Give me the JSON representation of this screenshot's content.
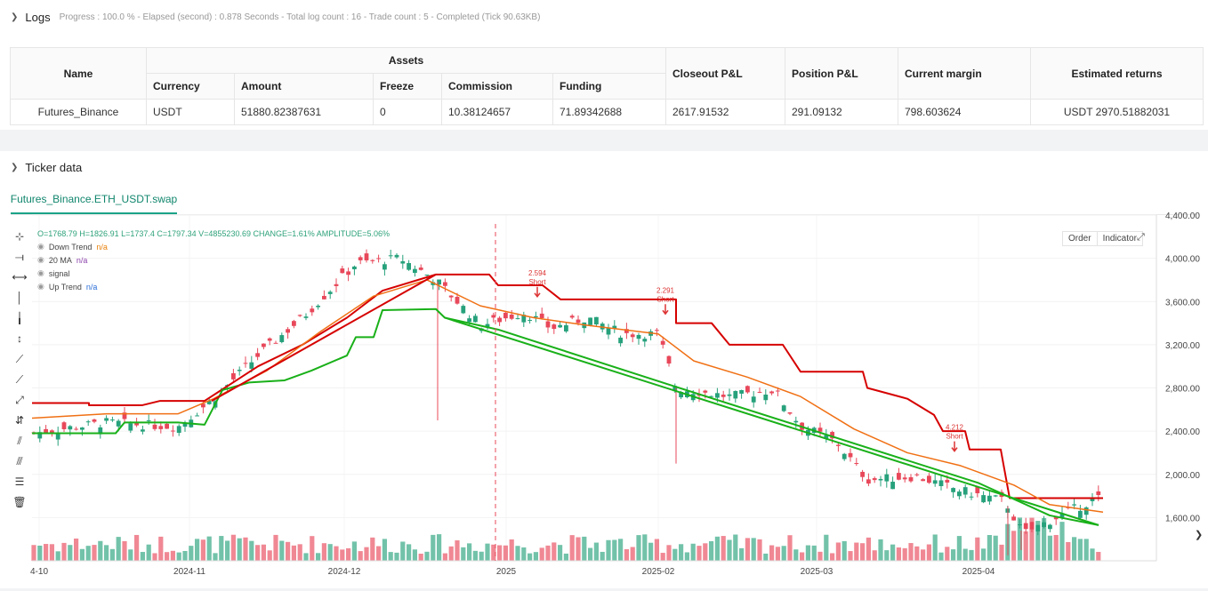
{
  "logs": {
    "title": "Logs",
    "status": "Progress : 100.0 % - Elapsed (second) : 0.878  Seconds - Total log count : 16 - Trade count : 5 - Completed (Tick 90.63KB)",
    "table": {
      "headers": {
        "name": "Name",
        "assets": "Assets",
        "closeout": "Closeout P&L",
        "position": "Position P&L",
        "margin": "Current margin",
        "returns": "Estimated returns"
      },
      "subheaders": [
        "Currency",
        "Amount",
        "Freeze",
        "Commission",
        "Funding"
      ],
      "row": {
        "name": "Futures_Binance",
        "currency": "USDT",
        "amount": "51880.82387631",
        "freeze": "0",
        "commission": "10.38124657",
        "funding": "71.89342688",
        "closeout": "2617.91532",
        "position": "291.09132",
        "margin": "798.603624",
        "returns": "USDT 2970.51882031"
      }
    }
  },
  "ticker": {
    "title": "Ticker data",
    "tab": "Futures_Binance.ETH_USDT.swap",
    "ohlc": "O=1768.79  H=1826.91  L=1737.4  C=1797.34  V=4855230.69  CHANGE=1.61%  AMPLITUDE=5.06%",
    "legend": [
      {
        "name": "Down Trend",
        "value": "n/a",
        "color": "#e8800a"
      },
      {
        "name": "20 MA",
        "value": "n/a",
        "color": "#8e44ad"
      },
      {
        "name": "signal",
        "value": "",
        "color": "#444444"
      },
      {
        "name": "Up Trend",
        "value": "n/a",
        "color": "#2b6ed6"
      }
    ],
    "buttons": {
      "order": "Order",
      "indicator": "Indicator"
    },
    "tools": [
      "crosshair-icon",
      "horizontal-line-icon",
      "horizontal-ray-icon",
      "vertical-line-icon",
      "vertical-segment-icon",
      "vertical-ray-icon",
      "trend-line-icon",
      "trend-ray-icon",
      "trend-segment-icon",
      "price-range-icon",
      "parallel-channel-icon",
      "multi-channel-icon",
      "fibonacci-icon",
      "trash-icon"
    ]
  },
  "chart_data": {
    "type": "candlestick",
    "x_ticks": [
      "4-10",
      "2024-11",
      "2024-12",
      "2025",
      "2025-02",
      "2025-03",
      "2025-04"
    ],
    "y_ticks": [
      "4,400.00",
      "4,000.00",
      "3,600.00",
      "3,200.00",
      "2,800.00",
      "2,400.00",
      "2,000.00",
      "1,600.00"
    ],
    "ylim": [
      1200,
      4400
    ],
    "colors": {
      "up": "#26a17b",
      "down": "#e8485a",
      "upper_band": "#d60000",
      "ma": "#f07014",
      "lower_band": "#19b019",
      "vline": "#e8485a"
    },
    "annotations": [
      {
        "value": "2.594",
        "label": "Short"
      },
      {
        "value": "2.291",
        "label": "Short"
      },
      {
        "value": "4.212",
        "label": "Short"
      }
    ],
    "ohlc_last": {
      "open": 1768.79,
      "high": 1826.91,
      "low": 1737.4,
      "close": 1797.34
    }
  }
}
